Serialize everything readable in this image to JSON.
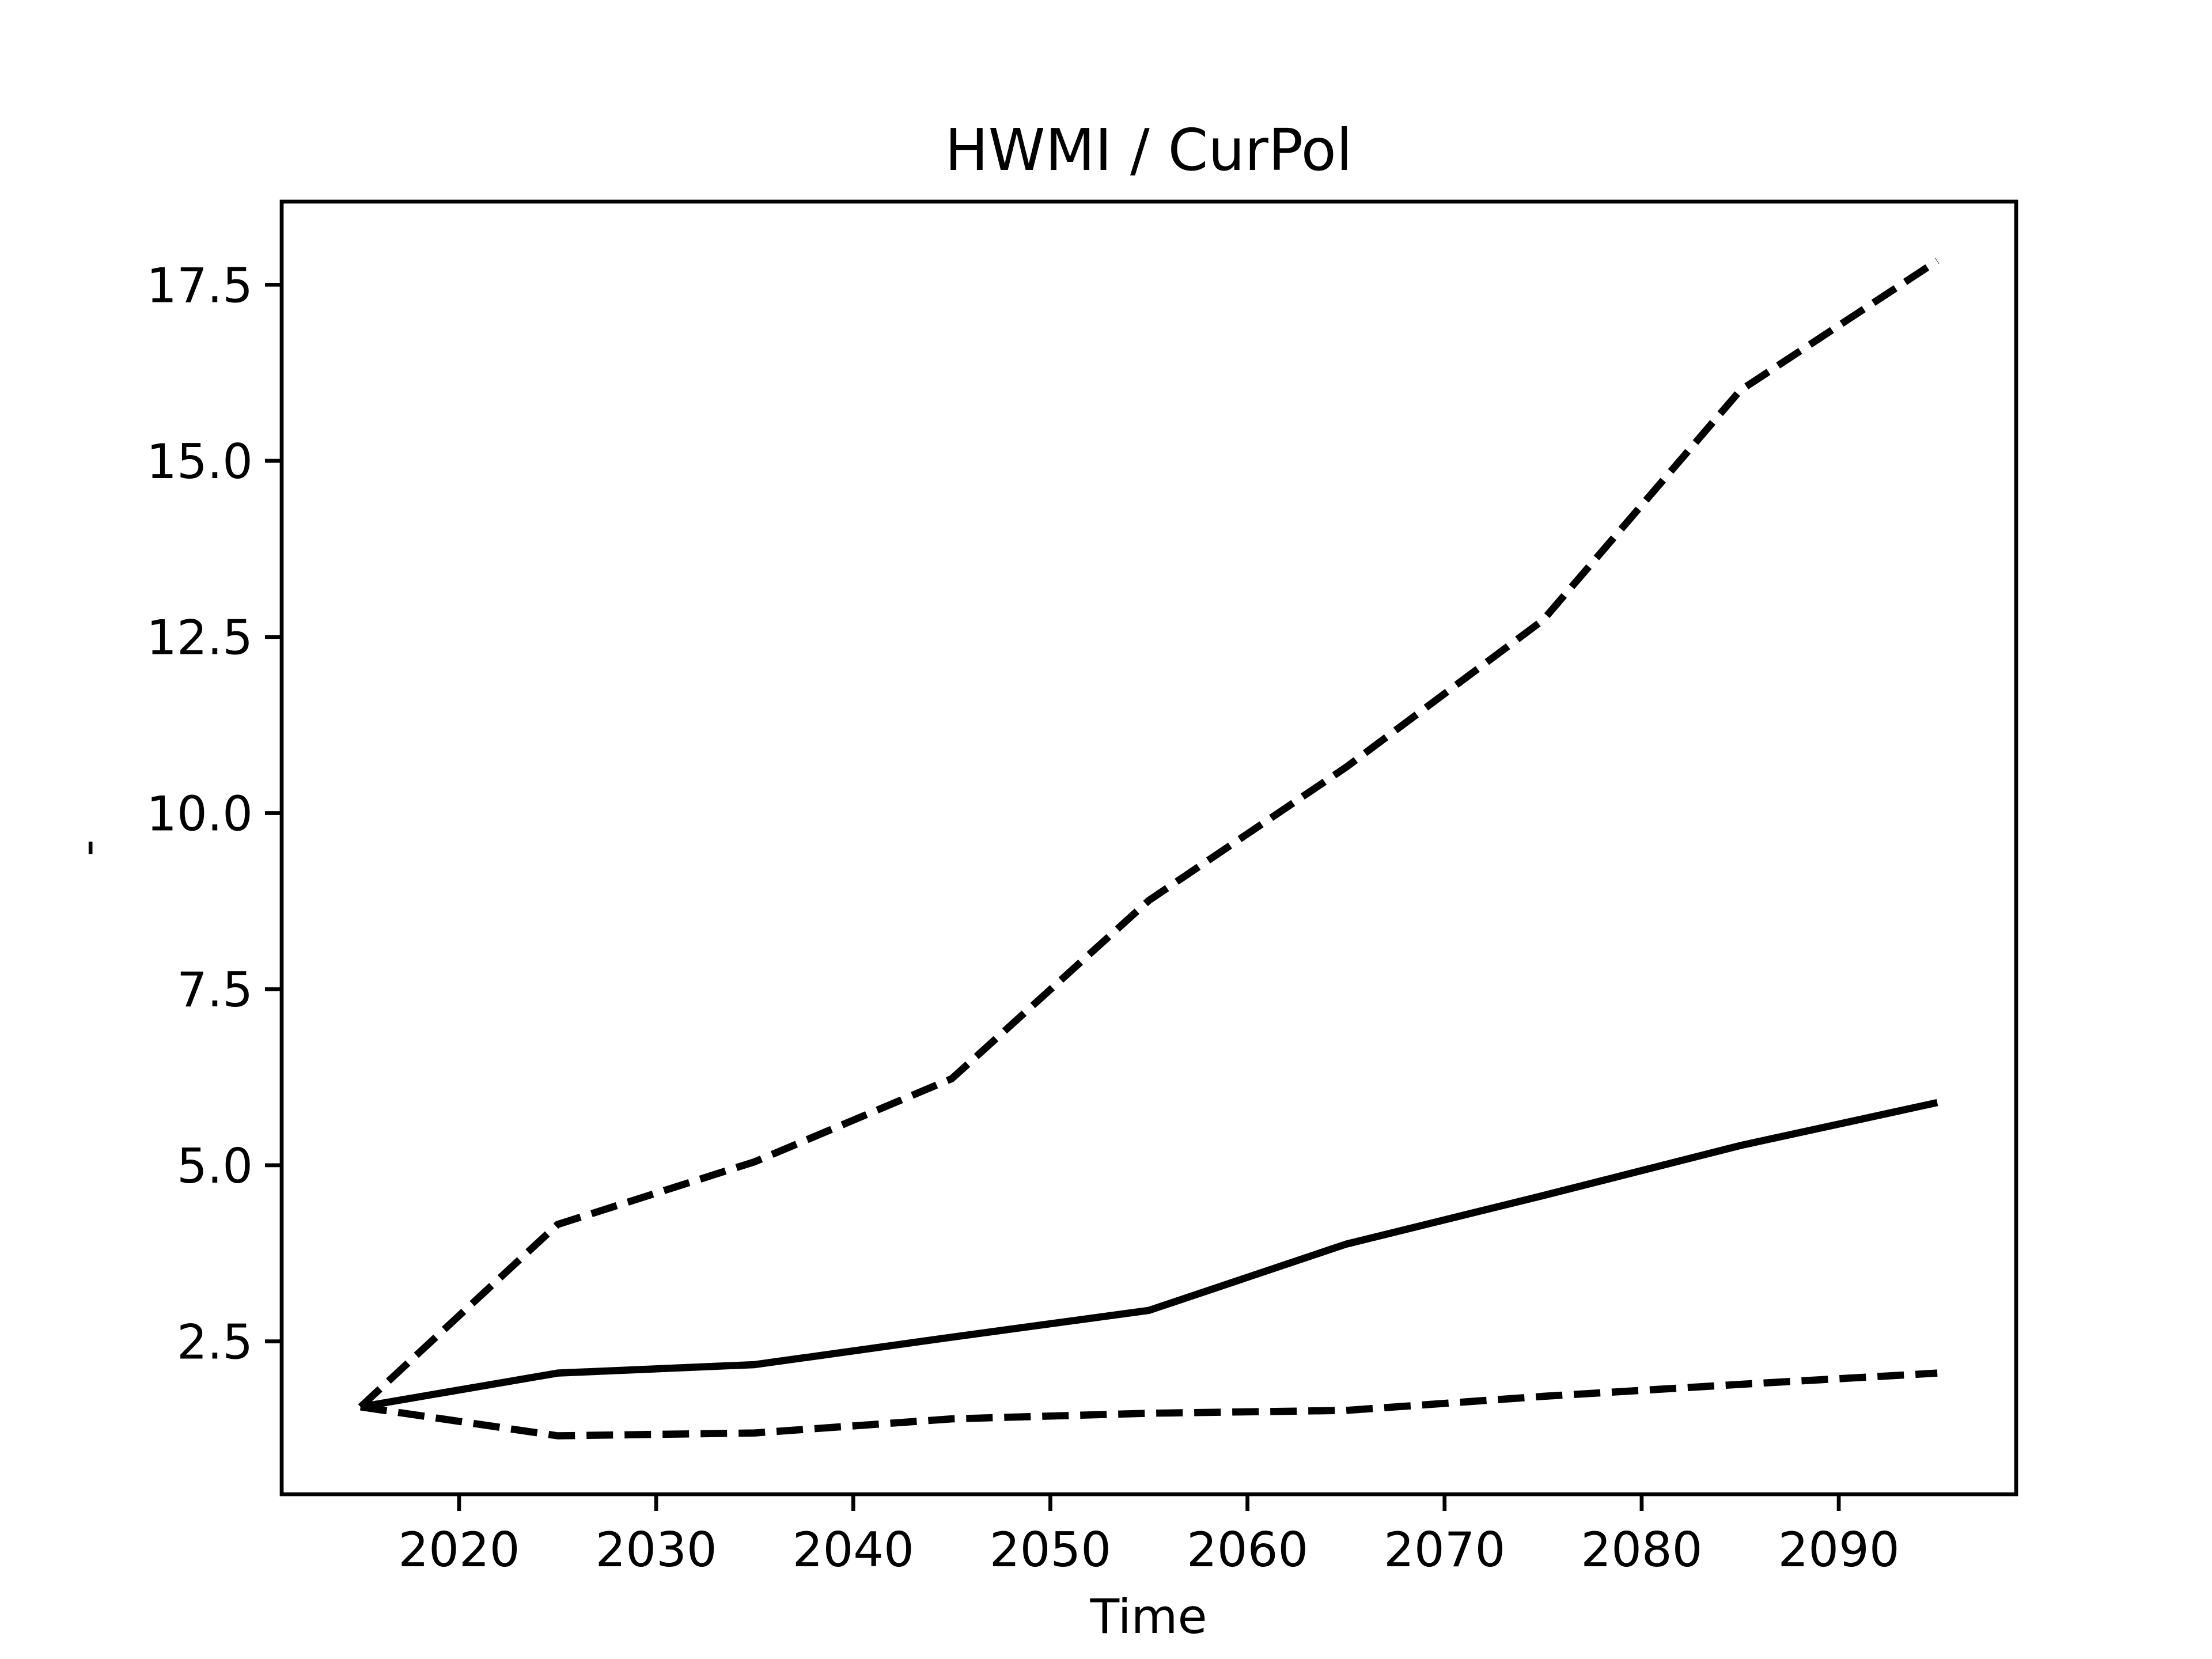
{
  "chart_data": {
    "type": "line",
    "title": "HWMI / CurPol",
    "x_label": "Time",
    "y_label": "-",
    "x": [
      2015,
      2025,
      2035,
      2045,
      2055,
      2065,
      2075,
      2085,
      2095
    ],
    "series": [
      {
        "color": "#000000",
        "style": "solid",
        "values": [
          1.57,
          2.05,
          2.17,
          2.56,
          2.94,
          3.88,
          4.57,
          5.28,
          5.89
        ]
      },
      {
        "color": "#000000",
        "style": "dashed",
        "values": [
          1.57,
          4.16,
          5.05,
          6.23,
          8.76,
          10.65,
          12.74,
          16.0,
          17.84
        ]
      },
      {
        "color": "#000000",
        "style": "dashed",
        "values": [
          1.57,
          1.16,
          1.2,
          1.4,
          1.48,
          1.52,
          1.72,
          1.89,
          2.05
        ]
      }
    ],
    "xlim": [
      2011,
      2099
    ],
    "xticks": [
      2020,
      2030,
      2040,
      2050,
      2060,
      2070,
      2080,
      2090
    ],
    "ylim": [
      0.33,
      18.68
    ],
    "yticks": [
      2.5,
      {
        "value": 5,
        "label": "5.0"
      },
      7.5,
      {
        "value": 10,
        "label": "10.0"
      },
      12.5,
      {
        "value": 15,
        "label": "15.0"
      },
      17.5
    ],
    "grid": false
  }
}
